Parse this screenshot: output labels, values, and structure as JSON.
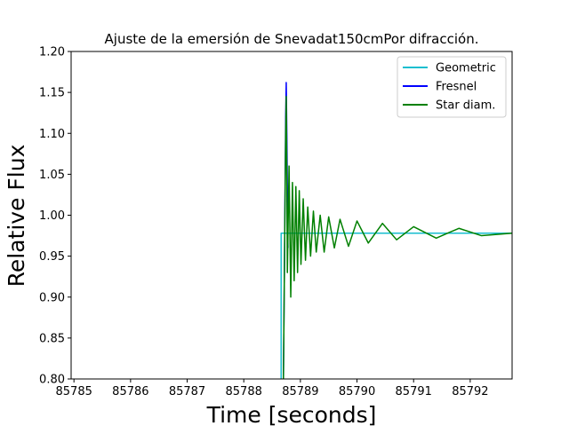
{
  "chart_data": {
    "type": "line",
    "title": "Ajuste de la emersión de Snevadat150cmPor difracción.",
    "xlabel": "Time [seconds]",
    "ylabel": "Relative Flux",
    "xlim": [
      85784.95,
      85792.74
    ],
    "ylim": [
      0.8,
      1.2
    ],
    "x_ticks": [
      85785,
      85786,
      85787,
      85788,
      85789,
      85790,
      85791,
      85792
    ],
    "x_tick_labels": [
      "85785",
      "85786",
      "85787",
      "85788",
      "85789",
      "85790",
      "85791",
      "85792"
    ],
    "y_ticks": [
      0.8,
      0.85,
      0.9,
      0.95,
      1.0,
      1.05,
      1.1,
      1.15,
      1.2
    ],
    "y_tick_labels": [
      "0.80",
      "0.85",
      "0.90",
      "0.95",
      "1.00",
      "1.05",
      "1.10",
      "1.15",
      "1.20"
    ],
    "grid": false,
    "legend_position": "upper right",
    "series": [
      {
        "name": "Geometric",
        "color": "#17becf",
        "x": [
          85788.66,
          85788.66,
          85788.76,
          85788.76,
          85792.74
        ],
        "y": [
          0.8,
          0.978,
          0.978,
          0.978,
          0.978
        ]
      },
      {
        "name": "Fresnel",
        "color": "#0000ff",
        "x": [
          85788.7,
          85788.72,
          85788.74,
          85788.75,
          85788.76,
          85788.78
        ],
        "y": [
          0.8,
          0.95,
          1.12,
          1.162,
          1.1,
          0.96
        ]
      },
      {
        "name": "Star diam.",
        "color": "#008000",
        "x": [
          85788.7,
          85788.72,
          85788.74,
          85788.75,
          85788.76,
          85788.77,
          85788.8,
          85788.83,
          85788.86,
          85788.89,
          85788.92,
          85788.95,
          85788.98,
          85789.01,
          85789.05,
          85789.09,
          85789.13,
          85789.18,
          85789.23,
          85789.28,
          85789.35,
          85789.42,
          85789.5,
          85789.6,
          85789.7,
          85789.85,
          85790.0,
          85790.2,
          85790.45,
          85790.7,
          85791.0,
          85791.4,
          85791.8,
          85792.2,
          85792.74
        ],
        "y": [
          0.8,
          0.95,
          1.1,
          1.145,
          1.05,
          0.93,
          1.06,
          0.9,
          1.04,
          0.92,
          1.035,
          0.93,
          1.03,
          0.94,
          1.02,
          0.945,
          1.01,
          0.95,
          1.005,
          0.955,
          1.0,
          0.955,
          0.998,
          0.96,
          0.995,
          0.962,
          0.993,
          0.966,
          0.99,
          0.97,
          0.986,
          0.972,
          0.984,
          0.975,
          0.978
        ]
      }
    ]
  }
}
